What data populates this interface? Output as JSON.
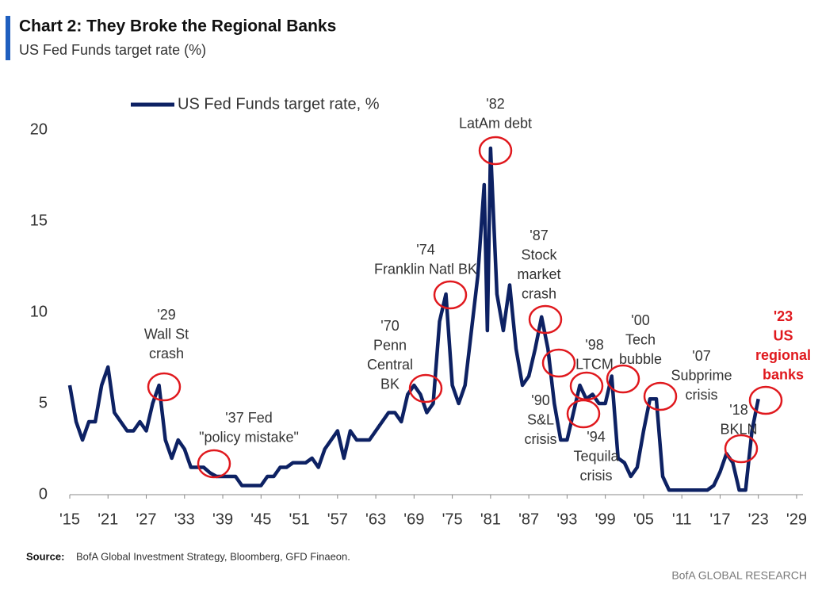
{
  "chart_data": {
    "type": "line",
    "title": "Chart 2: They Broke the Regional Banks",
    "subtitle": "US Fed Funds target rate (%)",
    "source_label": "Source:",
    "source": "BofA Global Investment Strategy, Bloomberg, GFD Finaeon.",
    "footer": "BofA GLOBAL RESEARCH",
    "x": [
      1915,
      1916,
      1917,
      1918,
      1919,
      1920,
      1921,
      1922,
      1923,
      1924,
      1925,
      1926,
      1927,
      1928,
      1929,
      1930,
      1931,
      1932,
      1933,
      1934,
      1935,
      1936,
      1937,
      1938,
      1939,
      1940,
      1941,
      1942,
      1943,
      1944,
      1945,
      1946,
      1947,
      1948,
      1949,
      1950,
      1951,
      1952,
      1953,
      1954,
      1955,
      1956,
      1957,
      1958,
      1959,
      1960,
      1961,
      1962,
      1963,
      1964,
      1965,
      1966,
      1967,
      1968,
      1969,
      1970,
      1971,
      1972,
      1973,
      1974,
      1975,
      1976,
      1977,
      1978,
      1979,
      1980,
      1980.5,
      1981,
      1982,
      1983,
      1984,
      1985,
      1986,
      1987,
      1988,
      1989,
      1990,
      1991,
      1992,
      1993,
      1994,
      1995,
      1996,
      1997,
      1998,
      1999,
      2000,
      2001,
      2002,
      2003,
      2004,
      2005,
      2006,
      2007,
      2008,
      2009,
      2010,
      2011,
      2012,
      2013,
      2014,
      2015,
      2016,
      2017,
      2018,
      2019,
      2020,
      2021,
      2022,
      2023
    ],
    "series": [
      {
        "name": "US Fed Funds target rate, %",
        "color": "#0d2163",
        "values": [
          6,
          4,
          3,
          4,
          4,
          6,
          7,
          4.5,
          4,
          3.5,
          3.5,
          4,
          3.5,
          5,
          6,
          3,
          2,
          3,
          2.5,
          1.5,
          1.5,
          1.5,
          1.2,
          1,
          1,
          1,
          1,
          0.5,
          0.5,
          0.5,
          0.5,
          1,
          1,
          1.5,
          1.5,
          1.75,
          1.75,
          1.75,
          2,
          1.5,
          2.5,
          3,
          3.5,
          2,
          3.5,
          3,
          3,
          3,
          3.5,
          4,
          4.5,
          4.5,
          4,
          5.5,
          6,
          5.5,
          4.5,
          5,
          9.5,
          11,
          6,
          5,
          6,
          9,
          12,
          17,
          9,
          19,
          11,
          9,
          11.5,
          8,
          6,
          6.5,
          8,
          9.75,
          8,
          5,
          3,
          3,
          4.5,
          6,
          5.25,
          5.5,
          5,
          5,
          6.5,
          2,
          1.75,
          1,
          1.5,
          3.5,
          5.25,
          5.25,
          1,
          0.25,
          0.25,
          0.25,
          0.25,
          0.25,
          0.25,
          0.25,
          0.5,
          1.25,
          2.25,
          1.75,
          0.25,
          0.25,
          3.5,
          5.25
        ]
      }
    ],
    "xlim": [
      1915,
      2030
    ],
    "ylim": [
      0,
      21
    ],
    "yticks": [
      0,
      5,
      10,
      15,
      20
    ],
    "xticks": [
      {
        "value": 1915,
        "label": "'15"
      },
      {
        "value": 1921,
        "label": "'21"
      },
      {
        "value": 1927,
        "label": "'27"
      },
      {
        "value": 1933,
        "label": "'33"
      },
      {
        "value": 1939,
        "label": "'39"
      },
      {
        "value": 1945,
        "label": "'45"
      },
      {
        "value": 1951,
        "label": "'51"
      },
      {
        "value": 1957,
        "label": "'57"
      },
      {
        "value": 1963,
        "label": "'63"
      },
      {
        "value": 1969,
        "label": "'69"
      },
      {
        "value": 1975,
        "label": "'75"
      },
      {
        "value": 1981,
        "label": "'81"
      },
      {
        "value": 1987,
        "label": "'87"
      },
      {
        "value": 1993,
        "label": "'93"
      },
      {
        "value": 1999,
        "label": "'99"
      },
      {
        "value": 2005,
        "label": "'05"
      },
      {
        "value": 2011,
        "label": "'11"
      },
      {
        "value": 2017,
        "label": "'17"
      },
      {
        "value": 2023,
        "label": "'23"
      },
      {
        "value": 2029,
        "label": "'29"
      }
    ],
    "annotation_circle_color": "#e0191e",
    "annotations": [
      {
        "lines": [
          "'29",
          "Wall St",
          "crash"
        ],
        "color": "#333333"
      },
      {
        "lines": [
          "'37 Fed",
          "\"policy mistake\""
        ],
        "color": "#333333"
      },
      {
        "lines": [
          "'70",
          "Penn",
          "Central",
          "BK"
        ],
        "color": "#333333"
      },
      {
        "lines": [
          "'74",
          "Franklin Natl BK"
        ],
        "color": "#333333"
      },
      {
        "lines": [
          "'82",
          "LatAm debt"
        ],
        "color": "#333333"
      },
      {
        "lines": [
          "'87",
          "Stock",
          "market",
          "crash"
        ],
        "color": "#333333"
      },
      {
        "lines": [
          "'90",
          "S&L",
          "crisis"
        ],
        "color": "#333333"
      },
      {
        "lines": [
          "'94",
          "Tequila",
          "crisis"
        ],
        "color": "#333333"
      },
      {
        "lines": [
          "'98",
          "LTCM"
        ],
        "color": "#333333"
      },
      {
        "lines": [
          "'00",
          "Tech",
          "bubble"
        ],
        "color": "#333333"
      },
      {
        "lines": [
          "'07",
          "Subprime",
          "crisis"
        ],
        "color": "#333333"
      },
      {
        "lines": [
          "'18",
          "BKLN"
        ],
        "color": "#333333"
      },
      {
        "lines": [
          "'23",
          "US",
          "regional",
          "banks"
        ],
        "color": "#e0191e"
      }
    ]
  }
}
